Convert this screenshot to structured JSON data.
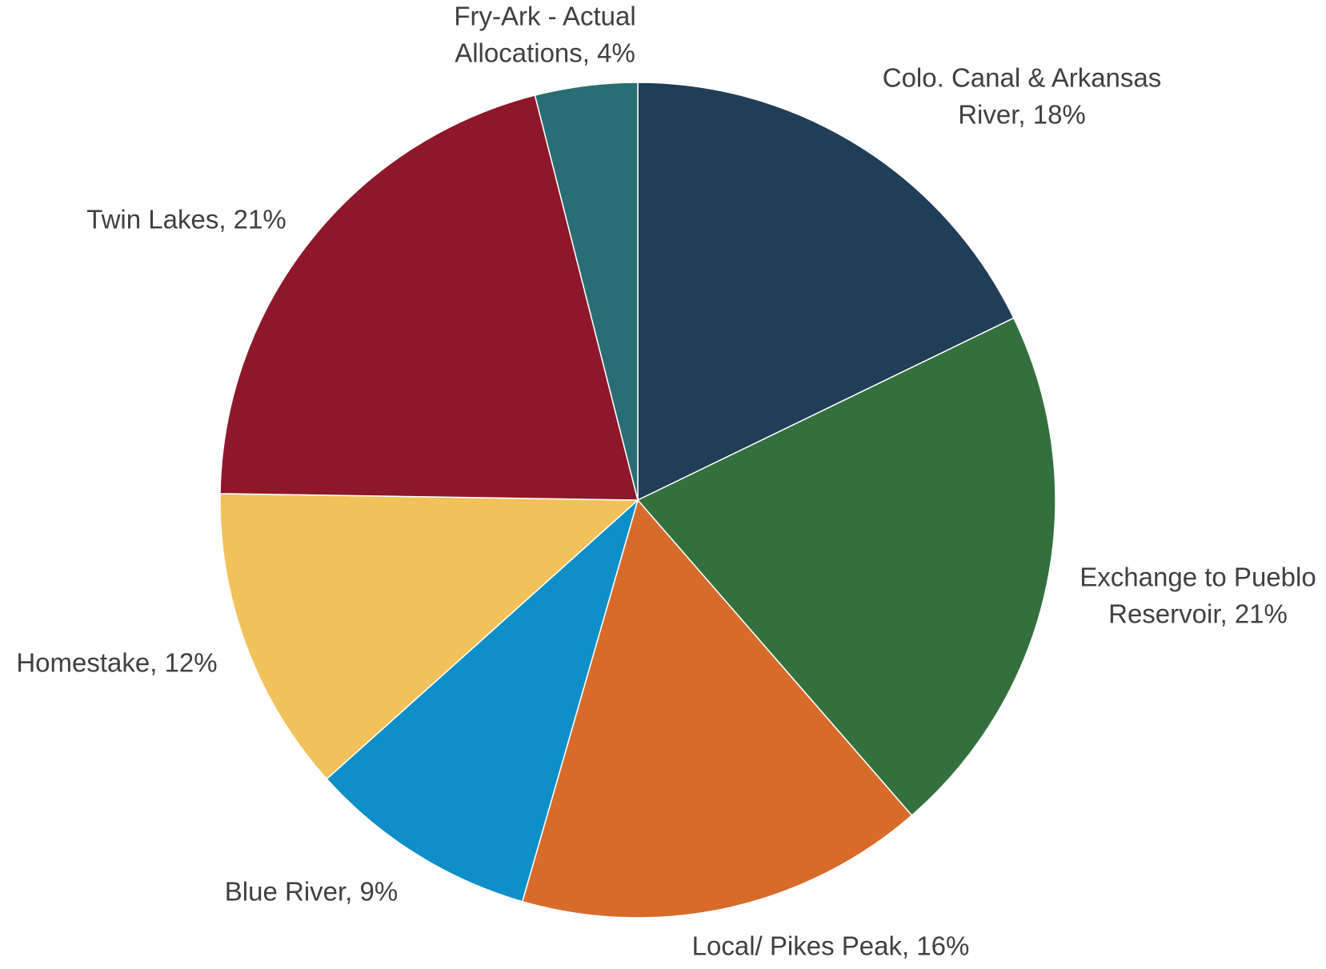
{
  "chart_data": {
    "type": "pie",
    "title": "",
    "start_angle_deg": 0,
    "direction": "clockwise",
    "legend": "none",
    "slices": [
      {
        "name": "Colo. Canal & Arkansas River",
        "value": 18,
        "color": "#213e58",
        "label_lines": [
          "Colo. Canal & Arkansas",
          "River, 18%"
        ]
      },
      {
        "name": "Exchange to Pueblo Reservoir",
        "value": 21,
        "color": "#33703d",
        "label_lines": [
          "Exchange to Pueblo",
          "Reservoir, 21%"
        ]
      },
      {
        "name": "Local/ Pikes Peak",
        "value": 16,
        "color": "#d76b29",
        "label_lines": [
          "Local/ Pikes Peak, 16%"
        ]
      },
      {
        "name": "Blue River",
        "value": 9,
        "color": "#0e8fc8",
        "label_lines": [
          "Blue River, 9%"
        ]
      },
      {
        "name": "Homestake",
        "value": 12,
        "color": "#f1c15a",
        "label_lines": [
          "Homestake, 12%"
        ]
      },
      {
        "name": "Twin Lakes",
        "value": 21,
        "color": "#8e1729",
        "label_lines": [
          "Twin Lakes, 21%"
        ]
      },
      {
        "name": "Fry-Ark - Actual Allocations",
        "value": 4,
        "color": "#296e74",
        "label_lines": [
          "Fry-Ark - Actual",
          "Allocations, 4%"
        ]
      }
    ]
  }
}
